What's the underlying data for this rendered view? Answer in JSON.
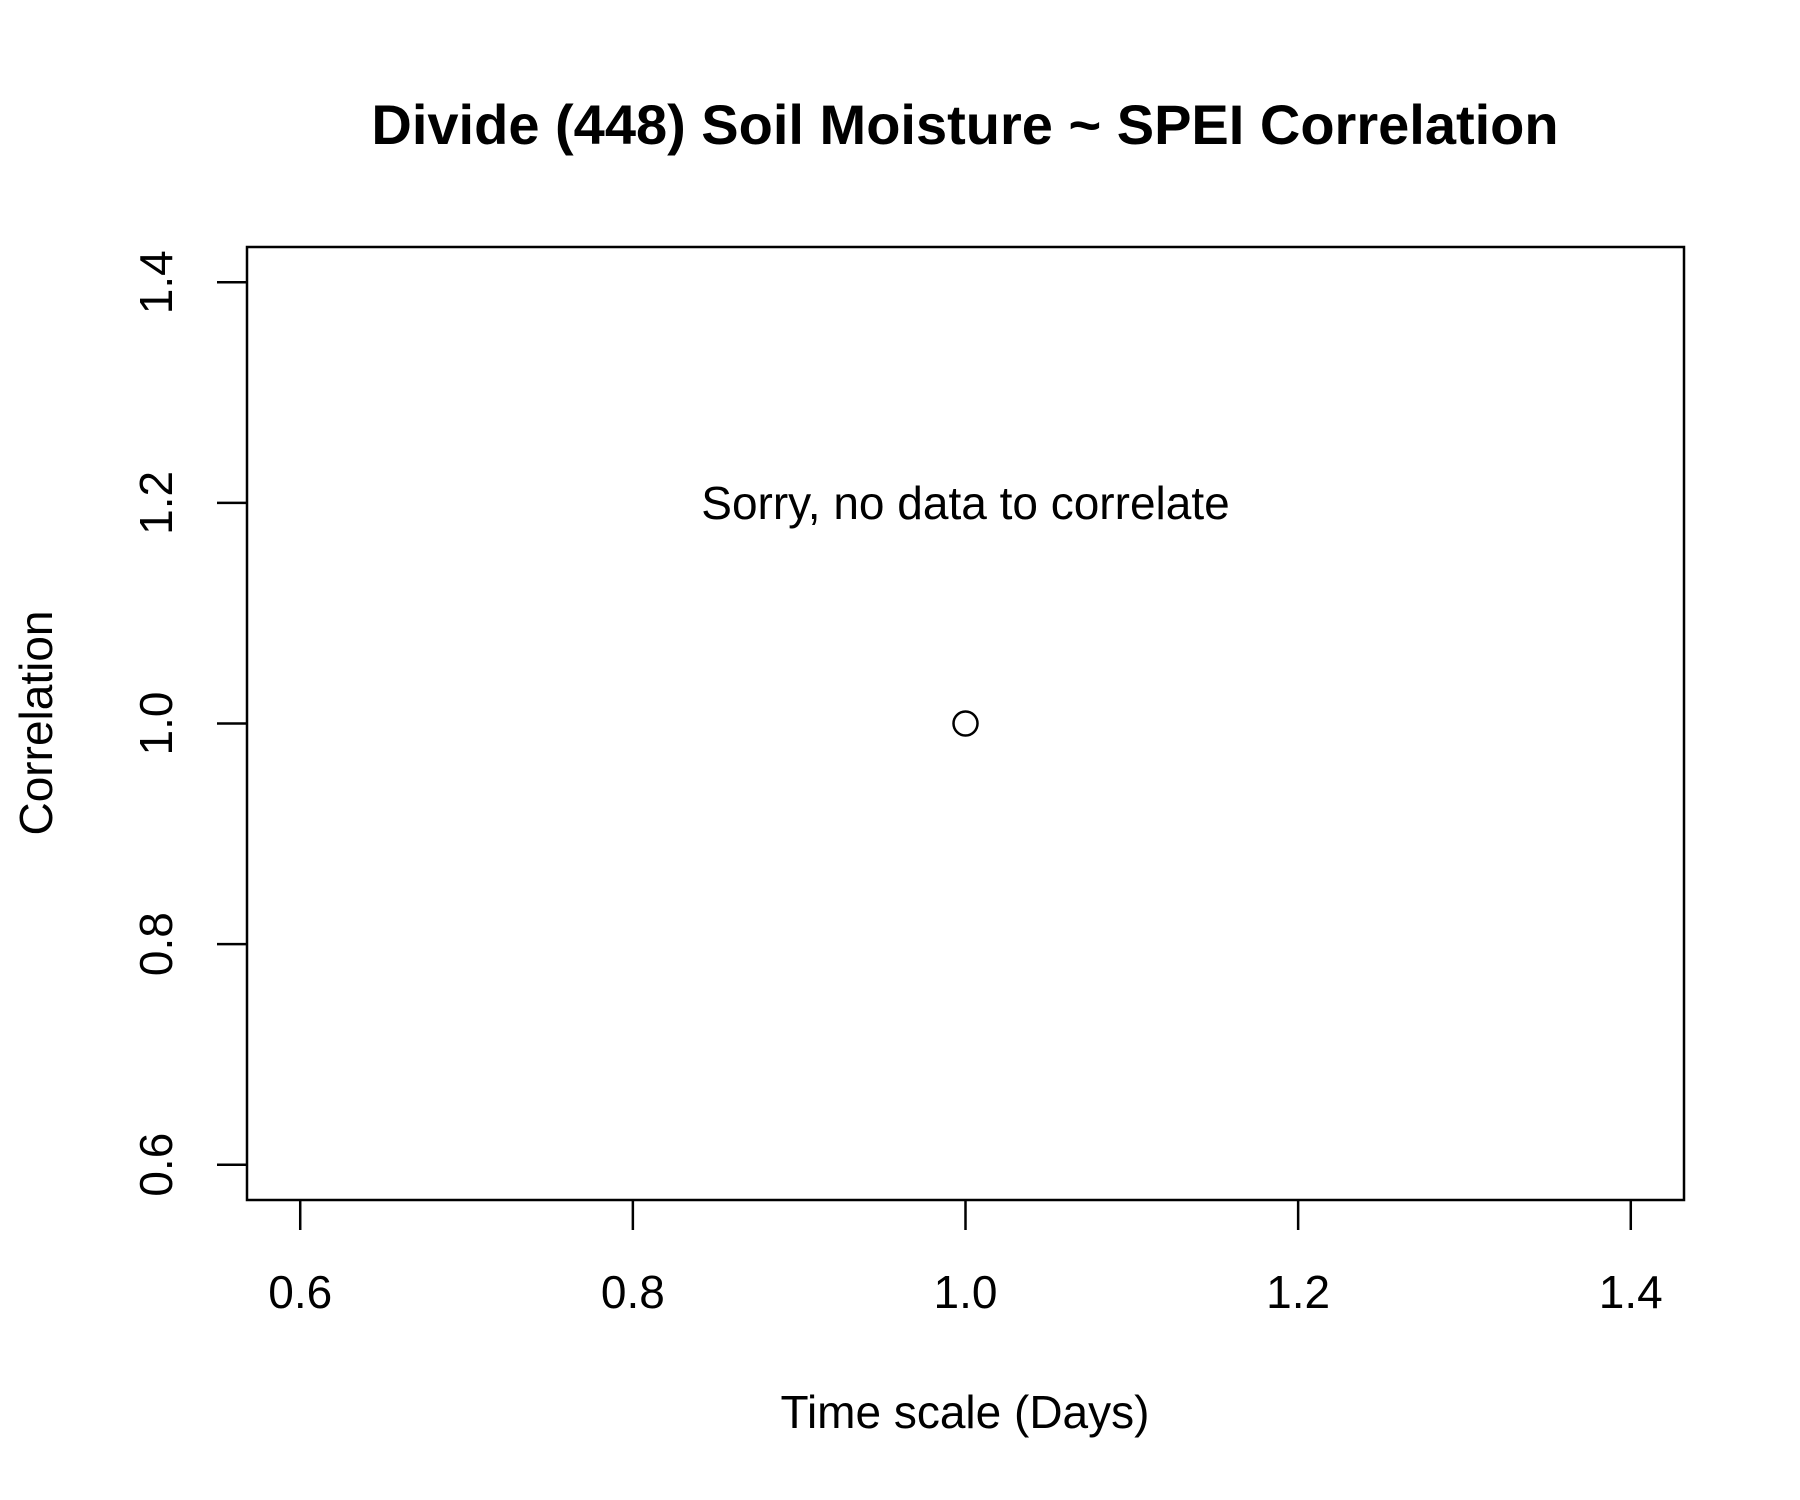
{
  "chart_data": {
    "type": "scatter",
    "title": "Divide (448) Soil Moisture ~ SPEI Correlation",
    "xlabel": "Time scale (Days)",
    "ylabel": "Correlation",
    "xlim": [
      0.568,
      1.432
    ],
    "ylim": [
      0.568,
      1.432
    ],
    "x_ticks": [
      0.6,
      0.8,
      1.0,
      1.2,
      1.4
    ],
    "x_tick_labels": [
      "0.6",
      "0.8",
      "1.0",
      "1.2",
      "1.4"
    ],
    "y_ticks": [
      0.6,
      0.8,
      1.0,
      1.2,
      1.4
    ],
    "y_tick_labels": [
      "0.6",
      "0.8",
      "1.0",
      "1.2",
      "1.4"
    ],
    "grid": false,
    "points": [
      {
        "x": 1.0,
        "y": 1.0
      }
    ],
    "annotation": {
      "text": "Sorry, no data to correlate",
      "x": 1.0,
      "y": 1.2
    }
  }
}
